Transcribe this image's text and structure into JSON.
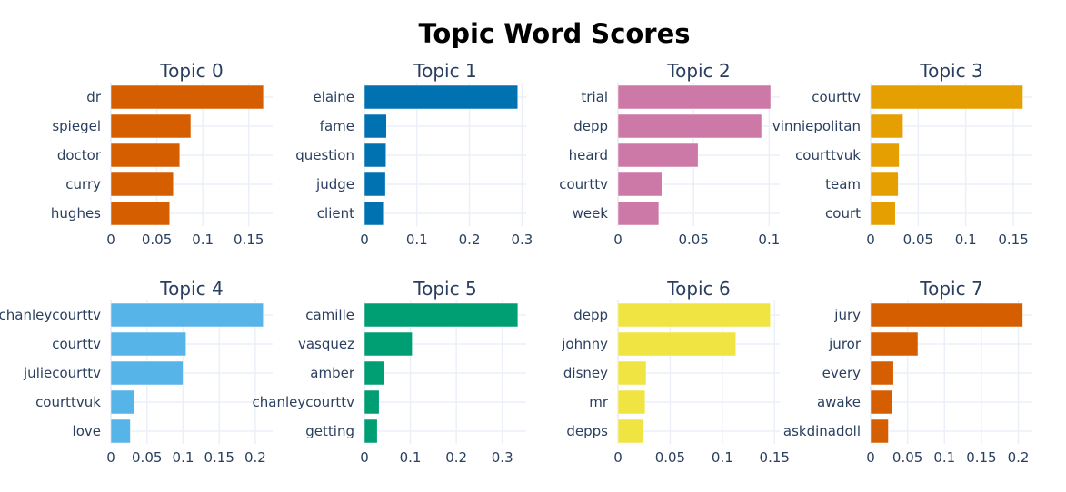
{
  "chart_title": "Topic Word Scores",
  "chart_data": [
    {
      "type": "bar",
      "orientation": "horizontal",
      "title": "Topic 0",
      "color": "#D55E00",
      "categories": [
        "dr",
        "spiegel",
        "doctor",
        "curry",
        "hughes"
      ],
      "values": [
        0.166,
        0.087,
        0.075,
        0.068,
        0.064
      ],
      "xlim": [
        0,
        0.176
      ],
      "xticks": [
        0,
        0.05,
        0.1,
        0.15
      ],
      "xtick_labels": [
        "0",
        "0.05",
        "0.1",
        "0.15"
      ]
    },
    {
      "type": "bar",
      "orientation": "horizontal",
      "title": "Topic 1",
      "color": "#0072B2",
      "categories": [
        "elaine",
        "fame",
        "question",
        "judge",
        "client"
      ],
      "values": [
        0.292,
        0.042,
        0.041,
        0.04,
        0.036
      ],
      "xlim": [
        0,
        0.308
      ],
      "xticks": [
        0,
        0.1,
        0.2,
        0.3
      ],
      "xtick_labels": [
        "0",
        "0.1",
        "0.2",
        "0.3"
      ]
    },
    {
      "type": "bar",
      "orientation": "horizontal",
      "title": "Topic 2",
      "color": "#CC79A7",
      "categories": [
        "trial",
        "depp",
        "heard",
        "courttv",
        "week"
      ],
      "values": [
        0.101,
        0.095,
        0.053,
        0.029,
        0.027
      ],
      "xlim": [
        0,
        0.107
      ],
      "xticks": [
        0,
        0.05,
        0.1
      ],
      "xtick_labels": [
        "0",
        "0.05",
        "0.1"
      ]
    },
    {
      "type": "bar",
      "orientation": "horizontal",
      "title": "Topic 3",
      "color": "#E69F00",
      "categories": [
        "courttv",
        "vinniepolitan",
        "courttvuk",
        "team",
        "court"
      ],
      "values": [
        0.16,
        0.034,
        0.03,
        0.029,
        0.026
      ],
      "xlim": [
        0,
        0.17
      ],
      "xticks": [
        0,
        0.05,
        0.1,
        0.15
      ],
      "xtick_labels": [
        "0",
        "0.05",
        "0.1",
        "0.15"
      ]
    },
    {
      "type": "bar",
      "orientation": "horizontal",
      "title": "Topic 4",
      "color": "#56B4E9",
      "categories": [
        "chanleycourttv",
        "courttv",
        "juliecourttv",
        "courttvuk",
        "love"
      ],
      "values": [
        0.211,
        0.104,
        0.1,
        0.032,
        0.027
      ],
      "xlim": [
        0,
        0.224
      ],
      "xticks": [
        0,
        0.05,
        0.1,
        0.15,
        0.2
      ],
      "xtick_labels": [
        "0",
        "0.05",
        "0.1",
        "0.15",
        "0.2"
      ]
    },
    {
      "type": "bar",
      "orientation": "horizontal",
      "title": "Topic 5",
      "color": "#009E73",
      "categories": [
        "camille",
        "vasquez",
        "amber",
        "chanleycourttv",
        "getting"
      ],
      "values": [
        0.334,
        0.104,
        0.042,
        0.032,
        0.028
      ],
      "xlim": [
        0,
        0.352
      ],
      "xticks": [
        0,
        0.1,
        0.2,
        0.3
      ],
      "xtick_labels": [
        "0",
        "0.1",
        "0.2",
        "0.3"
      ]
    },
    {
      "type": "bar",
      "orientation": "horizontal",
      "title": "Topic 6",
      "color": "#F0E442",
      "categories": [
        "depp",
        "johnny",
        "disney",
        "mr",
        "depps"
      ],
      "values": [
        0.146,
        0.113,
        0.027,
        0.026,
        0.024
      ],
      "xlim": [
        0,
        0.155
      ],
      "xticks": [
        0,
        0.05,
        0.1,
        0.15
      ],
      "xtick_labels": [
        "0",
        "0.05",
        "0.1",
        "0.15"
      ]
    },
    {
      "type": "bar",
      "orientation": "horizontal",
      "title": "Topic 7",
      "color": "#D55E00",
      "categories": [
        "jury",
        "juror",
        "every",
        "awake",
        "askdinadoll"
      ],
      "values": [
        0.206,
        0.064,
        0.031,
        0.029,
        0.024
      ],
      "xlim": [
        0,
        0.219
      ],
      "xticks": [
        0,
        0.05,
        0.1,
        0.15,
        0.2
      ],
      "xtick_labels": [
        "0",
        "0.05",
        "0.1",
        "0.15",
        "0.2"
      ]
    }
  ]
}
